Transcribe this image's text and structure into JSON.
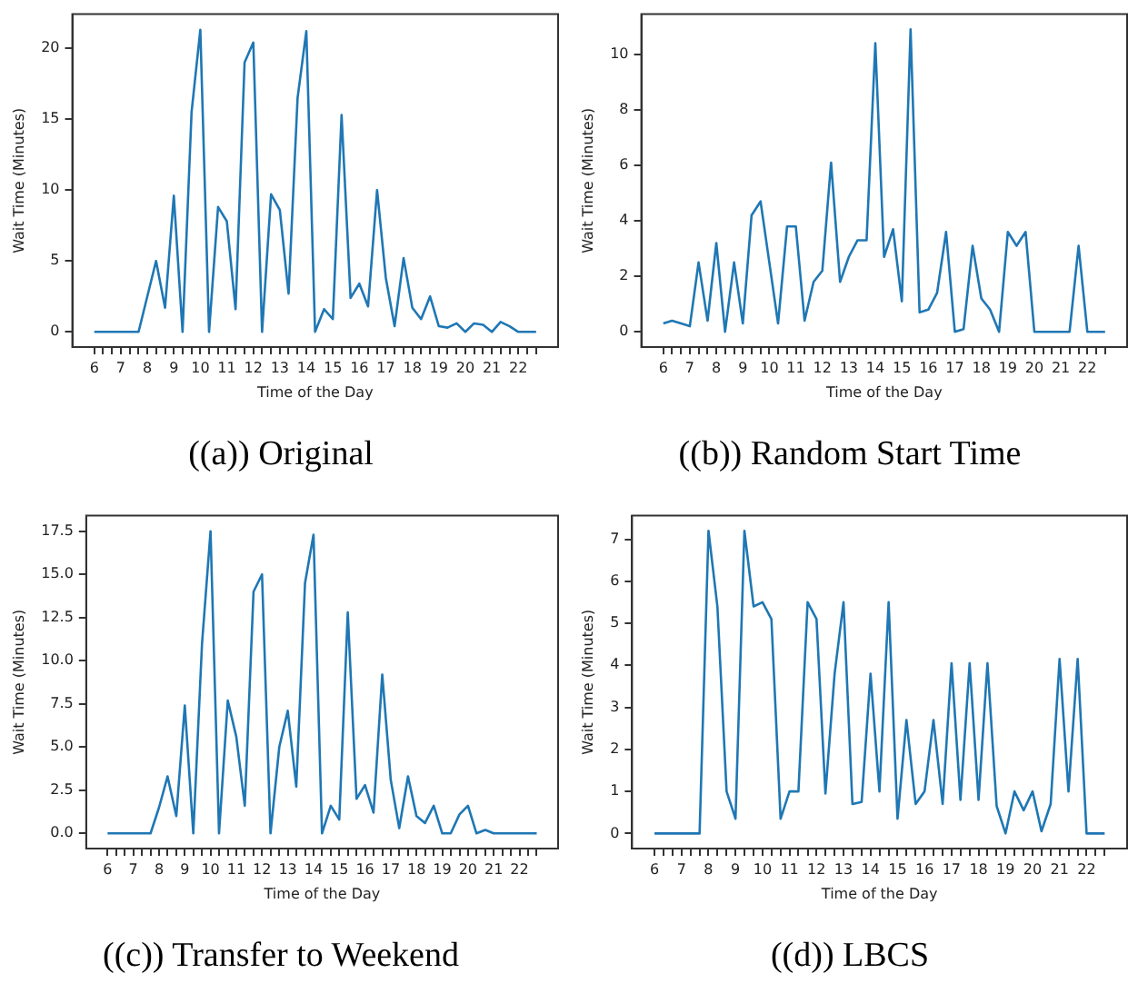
{
  "chart_data": [
    {
      "type": "line",
      "title": "((a)) Original",
      "xlabel": "Time of the Day",
      "ylabel": "Wait Time (Minutes)",
      "grid": false,
      "legend": false,
      "marker": "none",
      "line_style": "solid",
      "x": [
        6,
        6.33,
        6.67,
        7,
        7.33,
        7.67,
        8,
        8.33,
        8.67,
        9,
        9.33,
        9.67,
        10,
        10.33,
        10.67,
        11,
        11.33,
        11.67,
        12,
        12.33,
        12.67,
        13,
        13.33,
        13.67,
        14,
        14.33,
        14.67,
        15,
        15.33,
        15.67,
        16,
        16.33,
        16.67,
        17,
        17.33,
        17.67,
        18,
        18.33,
        18.67,
        19,
        19.33,
        19.67,
        20,
        20.33,
        20.67,
        21,
        21.33,
        21.67,
        22,
        22.33,
        22.67
      ],
      "series": [
        {
          "color": "#1f77b4",
          "values": [
            0,
            0,
            0,
            0,
            0,
            0,
            2.5,
            5,
            1.7,
            9.6,
            0,
            15.5,
            21.3,
            0,
            8.8,
            7.8,
            1.6,
            19,
            20.4,
            0,
            9.7,
            8.6,
            2.7,
            16.5,
            21.2,
            0,
            1.6,
            0.9,
            15.3,
            2.4,
            3.4,
            1.8,
            10,
            3.8,
            0.4,
            5.2,
            1.7,
            0.9,
            2.5,
            0.4,
            0.3,
            0.6,
            0,
            0.6,
            0.5,
            0,
            0.7,
            0.4,
            0,
            0,
            0
          ]
        }
      ],
      "xlim": [
        5.17,
        23.5
      ],
      "ylim": [
        -1.07,
        22.4
      ],
      "xticks": [
        6,
        {
          "value": 6.33,
          "label": null
        },
        {
          "value": 6.67,
          "label": null
        },
        7,
        {
          "value": 7.33,
          "label": null
        },
        {
          "value": 7.67,
          "label": null
        },
        8,
        {
          "value": 8.33,
          "label": null
        },
        {
          "value": 8.67,
          "label": null
        },
        9,
        {
          "value": 9.33,
          "label": null
        },
        {
          "value": 9.67,
          "label": null
        },
        10,
        {
          "value": 10.33,
          "label": null
        },
        {
          "value": 10.67,
          "label": null
        },
        11,
        {
          "value": 11.33,
          "label": null
        },
        {
          "value": 11.67,
          "label": null
        },
        12,
        {
          "value": 12.33,
          "label": null
        },
        {
          "value": 12.67,
          "label": null
        },
        13,
        {
          "value": 13.33,
          "label": null
        },
        {
          "value": 13.67,
          "label": null
        },
        14,
        {
          "value": 14.33,
          "label": null
        },
        {
          "value": 14.67,
          "label": null
        },
        15,
        {
          "value": 15.33,
          "label": null
        },
        {
          "value": 15.67,
          "label": null
        },
        16,
        {
          "value": 16.33,
          "label": null
        },
        {
          "value": 16.67,
          "label": null
        },
        17,
        {
          "value": 17.33,
          "label": null
        },
        {
          "value": 17.67,
          "label": null
        },
        18,
        {
          "value": 18.33,
          "label": null
        },
        {
          "value": 18.67,
          "label": null
        },
        19,
        {
          "value": 19.33,
          "label": null
        },
        {
          "value": 19.67,
          "label": null
        },
        20,
        {
          "value": 20.33,
          "label": null
        },
        {
          "value": 20.67,
          "label": null
        },
        21,
        {
          "value": 21.33,
          "label": null
        },
        {
          "value": 21.67,
          "label": null
        },
        22,
        {
          "value": 22.33,
          "label": null
        },
        {
          "value": 22.67,
          "label": null
        }
      ],
      "yticks": [
        0,
        5,
        10,
        15,
        20
      ]
    },
    {
      "type": "line",
      "title": "((b)) Random Start Time",
      "xlabel": "Time of the Day",
      "ylabel": "Wait Time (Minutes)",
      "grid": false,
      "legend": false,
      "marker": "none",
      "line_style": "solid",
      "x": [
        6,
        6.33,
        6.67,
        7,
        7.33,
        7.67,
        8,
        8.33,
        8.67,
        9,
        9.33,
        9.67,
        10,
        10.33,
        10.67,
        11,
        11.33,
        11.67,
        12,
        12.33,
        12.67,
        13,
        13.33,
        13.67,
        14,
        14.33,
        14.67,
        15,
        15.33,
        15.67,
        16,
        16.33,
        16.67,
        17,
        17.33,
        17.67,
        18,
        18.33,
        18.67,
        19,
        19.33,
        19.67,
        20,
        20.33,
        20.67,
        21,
        21.33,
        21.67,
        22,
        22.33,
        22.67
      ],
      "series": [
        {
          "color": "#1f77b4",
          "values": [
            0.3,
            0.4,
            0.3,
            0.2,
            2.5,
            0.4,
            3.2,
            0,
            2.5,
            0.3,
            4.2,
            4.7,
            2.5,
            0.3,
            3.8,
            3.8,
            0.4,
            1.8,
            2.2,
            6.1,
            1.8,
            2.7,
            3.3,
            3.3,
            10.4,
            2.7,
            3.7,
            1.1,
            10.9,
            0.7,
            0.8,
            1.4,
            3.6,
            0,
            0.1,
            3.1,
            1.2,
            0.8,
            0,
            3.6,
            3.1,
            3.6,
            0,
            0,
            0,
            0,
            0,
            3.1,
            0,
            0,
            0
          ]
        }
      ],
      "xlim": [
        5.17,
        23.5
      ],
      "ylim": [
        -0.55,
        11.45
      ],
      "xticks": [
        6,
        {
          "value": 6.33,
          "label": null
        },
        {
          "value": 6.67,
          "label": null
        },
        7,
        {
          "value": 7.33,
          "label": null
        },
        {
          "value": 7.67,
          "label": null
        },
        8,
        {
          "value": 8.33,
          "label": null
        },
        {
          "value": 8.67,
          "label": null
        },
        9,
        {
          "value": 9.33,
          "label": null
        },
        {
          "value": 9.67,
          "label": null
        },
        10,
        {
          "value": 10.33,
          "label": null
        },
        {
          "value": 10.67,
          "label": null
        },
        11,
        {
          "value": 11.33,
          "label": null
        },
        {
          "value": 11.67,
          "label": null
        },
        12,
        {
          "value": 12.33,
          "label": null
        },
        {
          "value": 12.67,
          "label": null
        },
        13,
        {
          "value": 13.33,
          "label": null
        },
        {
          "value": 13.67,
          "label": null
        },
        14,
        {
          "value": 14.33,
          "label": null
        },
        {
          "value": 14.67,
          "label": null
        },
        15,
        {
          "value": 15.33,
          "label": null
        },
        {
          "value": 15.67,
          "label": null
        },
        16,
        {
          "value": 16.33,
          "label": null
        },
        {
          "value": 16.67,
          "label": null
        },
        17,
        {
          "value": 17.33,
          "label": null
        },
        {
          "value": 17.67,
          "label": null
        },
        18,
        {
          "value": 18.33,
          "label": null
        },
        {
          "value": 18.67,
          "label": null
        },
        19,
        {
          "value": 19.33,
          "label": null
        },
        {
          "value": 19.67,
          "label": null
        },
        20,
        {
          "value": 20.33,
          "label": null
        },
        {
          "value": 20.67,
          "label": null
        },
        21,
        {
          "value": 21.33,
          "label": null
        },
        {
          "value": 21.67,
          "label": null
        },
        22,
        {
          "value": 22.33,
          "label": null
        },
        {
          "value": 22.67,
          "label": null
        }
      ],
      "yticks": [
        0,
        2,
        4,
        6,
        8,
        10
      ]
    },
    {
      "type": "line",
      "title": "((c)) Transfer to Weekend",
      "xlabel": "Time of the Day",
      "ylabel": "Wait Time (Minutes)",
      "grid": false,
      "legend": false,
      "marker": "none",
      "line_style": "solid",
      "x": [
        6,
        6.33,
        6.67,
        7,
        7.33,
        7.67,
        8,
        8.33,
        8.67,
        9,
        9.33,
        9.67,
        10,
        10.33,
        10.67,
        11,
        11.33,
        11.67,
        12,
        12.33,
        12.67,
        13,
        13.33,
        13.67,
        14,
        14.33,
        14.67,
        15,
        15.33,
        15.67,
        16,
        16.33,
        16.67,
        17,
        17.33,
        17.67,
        18,
        18.33,
        18.67,
        19,
        19.33,
        19.67,
        20,
        20.33,
        20.67,
        21,
        21.33,
        21.67,
        22,
        22.33,
        22.67
      ],
      "series": [
        {
          "color": "#1f77b4",
          "values": [
            0,
            0,
            0,
            0,
            0,
            0,
            1.5,
            3.3,
            1,
            7.4,
            0,
            11,
            17.5,
            0,
            7.7,
            5.6,
            1.6,
            14,
            15,
            0,
            5,
            7.1,
            2.7,
            14.5,
            17.3,
            0,
            1.6,
            0.8,
            12.8,
            2,
            2.8,
            1.2,
            9.2,
            3.1,
            0.3,
            3.3,
            1,
            0.6,
            1.6,
            0,
            0,
            1.1,
            1.6,
            0,
            0.2,
            0,
            0,
            0,
            0,
            0,
            0
          ]
        }
      ],
      "xlim": [
        5.17,
        23.5
      ],
      "ylim": [
        -0.88,
        18.4
      ],
      "xticks": [
        6,
        {
          "value": 6.33,
          "label": null
        },
        {
          "value": 6.67,
          "label": null
        },
        7,
        {
          "value": 7.33,
          "label": null
        },
        {
          "value": 7.67,
          "label": null
        },
        8,
        {
          "value": 8.33,
          "label": null
        },
        {
          "value": 8.67,
          "label": null
        },
        9,
        {
          "value": 9.33,
          "label": null
        },
        {
          "value": 9.67,
          "label": null
        },
        10,
        {
          "value": 10.33,
          "label": null
        },
        {
          "value": 10.67,
          "label": null
        },
        11,
        {
          "value": 11.33,
          "label": null
        },
        {
          "value": 11.67,
          "label": null
        },
        12,
        {
          "value": 12.33,
          "label": null
        },
        {
          "value": 12.67,
          "label": null
        },
        13,
        {
          "value": 13.33,
          "label": null
        },
        {
          "value": 13.67,
          "label": null
        },
        14,
        {
          "value": 14.33,
          "label": null
        },
        {
          "value": 14.67,
          "label": null
        },
        15,
        {
          "value": 15.33,
          "label": null
        },
        {
          "value": 15.67,
          "label": null
        },
        16,
        {
          "value": 16.33,
          "label": null
        },
        {
          "value": 16.67,
          "label": null
        },
        17,
        {
          "value": 17.33,
          "label": null
        },
        {
          "value": 17.67,
          "label": null
        },
        18,
        {
          "value": 18.33,
          "label": null
        },
        {
          "value": 18.67,
          "label": null
        },
        19,
        {
          "value": 19.33,
          "label": null
        },
        {
          "value": 19.67,
          "label": null
        },
        20,
        {
          "value": 20.33,
          "label": null
        },
        {
          "value": 20.67,
          "label": null
        },
        21,
        {
          "value": 21.33,
          "label": null
        },
        {
          "value": 21.67,
          "label": null
        },
        22,
        {
          "value": 22.33,
          "label": null
        },
        {
          "value": 22.67,
          "label": null
        }
      ],
      "yticks": [
        {
          "value": 0,
          "label": "0.0"
        },
        {
          "value": 2.5,
          "label": "2.5"
        },
        {
          "value": 5,
          "label": "5.0"
        },
        {
          "value": 7.5,
          "label": "7.5"
        },
        {
          "value": 10,
          "label": "10.0"
        },
        {
          "value": 12.5,
          "label": "12.5"
        },
        {
          "value": 15,
          "label": "15.0"
        },
        {
          "value": 17.5,
          "label": "17.5"
        }
      ]
    },
    {
      "type": "line",
      "title": "((d)) LBCS",
      "xlabel": "Time of the Day",
      "ylabel": "Wait Time (Minutes)",
      "grid": false,
      "legend": false,
      "marker": "none",
      "line_style": "solid",
      "x": [
        6,
        6.33,
        6.67,
        7,
        7.33,
        7.67,
        8,
        8.33,
        8.67,
        9,
        9.33,
        9.67,
        10,
        10.33,
        10.67,
        11,
        11.33,
        11.67,
        12,
        12.33,
        12.67,
        13,
        13.33,
        13.67,
        14,
        14.33,
        14.67,
        15,
        15.33,
        15.67,
        16,
        16.33,
        16.67,
        17,
        17.33,
        17.67,
        18,
        18.33,
        18.67,
        19,
        19.33,
        19.67,
        20,
        20.33,
        20.67,
        21,
        21.33,
        21.67,
        22,
        22.33,
        22.67
      ],
      "series": [
        {
          "color": "#1f77b4",
          "values": [
            0,
            0,
            0,
            0,
            0,
            0,
            7.2,
            5.4,
            1,
            0.35,
            7.2,
            5.4,
            5.5,
            5.1,
            0.35,
            1,
            1,
            5.5,
            5.1,
            0.95,
            3.8,
            5.5,
            0.7,
            0.75,
            3.8,
            1,
            5.5,
            0.35,
            2.7,
            0.7,
            1,
            2.7,
            0.7,
            4.05,
            0.8,
            4.05,
            0.8,
            4.05,
            0.65,
            0,
            1,
            0.55,
            1,
            0.05,
            0.7,
            4.15,
            1,
            4.15,
            0,
            0,
            0
          ]
        }
      ],
      "xlim": [
        5.17,
        23.5
      ],
      "ylim": [
        -0.36,
        7.56
      ],
      "xticks": [
        6,
        {
          "value": 6.33,
          "label": null
        },
        {
          "value": 6.67,
          "label": null
        },
        7,
        {
          "value": 7.33,
          "label": null
        },
        {
          "value": 7.67,
          "label": null
        },
        8,
        {
          "value": 8.33,
          "label": null
        },
        {
          "value": 8.67,
          "label": null
        },
        9,
        {
          "value": 9.33,
          "label": null
        },
        {
          "value": 9.67,
          "label": null
        },
        10,
        {
          "value": 10.33,
          "label": null
        },
        {
          "value": 10.67,
          "label": null
        },
        11,
        {
          "value": 11.33,
          "label": null
        },
        {
          "value": 11.67,
          "label": null
        },
        12,
        {
          "value": 12.33,
          "label": null
        },
        {
          "value": 12.67,
          "label": null
        },
        13,
        {
          "value": 13.33,
          "label": null
        },
        {
          "value": 13.67,
          "label": null
        },
        14,
        {
          "value": 14.33,
          "label": null
        },
        {
          "value": 14.67,
          "label": null
        },
        15,
        {
          "value": 15.33,
          "label": null
        },
        {
          "value": 15.67,
          "label": null
        },
        16,
        {
          "value": 16.33,
          "label": null
        },
        {
          "value": 16.67,
          "label": null
        },
        17,
        {
          "value": 17.33,
          "label": null
        },
        {
          "value": 17.67,
          "label": null
        },
        18,
        {
          "value": 18.33,
          "label": null
        },
        {
          "value": 18.67,
          "label": null
        },
        19,
        {
          "value": 19.33,
          "label": null
        },
        {
          "value": 19.67,
          "label": null
        },
        20,
        {
          "value": 20.33,
          "label": null
        },
        {
          "value": 20.67,
          "label": null
        },
        21,
        {
          "value": 21.33,
          "label": null
        },
        {
          "value": 21.67,
          "label": null
        },
        22,
        {
          "value": 22.33,
          "label": null
        },
        {
          "value": 22.67,
          "label": null
        }
      ],
      "yticks": [
        0,
        1,
        2,
        3,
        4,
        5,
        6,
        7
      ]
    }
  ]
}
